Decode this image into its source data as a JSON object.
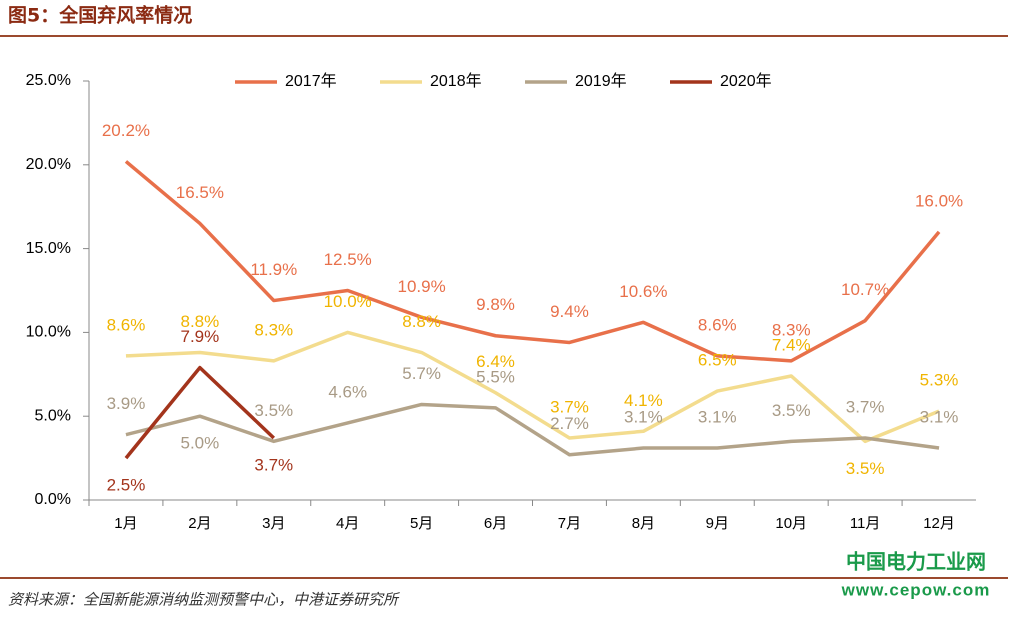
{
  "chart_data": {
    "type": "line",
    "title": "图5：全国弃风率情况",
    "source": "资料来源：全国新能源消纳监测预警中心，中港证券研究所",
    "watermark": [
      "中国电力工业网",
      "www.cepow.com"
    ],
    "categories": [
      "1月",
      "2月",
      "3月",
      "4月",
      "5月",
      "6月",
      "7月",
      "8月",
      "9月",
      "10月",
      "11月",
      "12月"
    ],
    "ylim": [
      0,
      25
    ],
    "yticks": [
      {
        "value": 0,
        "label": "0.0%"
      },
      {
        "value": 5,
        "label": "5.0%"
      },
      {
        "value": 10,
        "label": "10.0%"
      },
      {
        "value": 15,
        "label": "15.0%"
      },
      {
        "value": 20,
        "label": "20.0%"
      },
      {
        "value": 25,
        "label": "25.0%"
      }
    ],
    "legend": "top",
    "series": [
      {
        "name": "2017年",
        "color": "#e8704a",
        "label_color": "#e8704a",
        "values": [
          20.2,
          16.5,
          11.9,
          12.5,
          10.9,
          9.8,
          9.4,
          10.6,
          8.6,
          8.3,
          10.7,
          16.0
        ],
        "value_labels": [
          "20.2%",
          "16.5%",
          "11.9%",
          "12.5%",
          "10.9%",
          "9.8%",
          "9.4%",
          "10.6%",
          "8.6%",
          "8.3%",
          "10.7%",
          "16.0%"
        ]
      },
      {
        "name": "2018年",
        "color": "#f3dc8e",
        "label_color": "#f0b400",
        "values": [
          8.6,
          8.8,
          8.3,
          10.0,
          8.8,
          6.4,
          3.7,
          4.1,
          6.5,
          7.4,
          3.5,
          5.3
        ],
        "value_labels": [
          "8.6%",
          "8.8%",
          "8.3%",
          "10.0%",
          "8.8%",
          "6.4%",
          "3.7%",
          "4.1%",
          "6.5%",
          "7.4%",
          "3.5%",
          "5.3%"
        ]
      },
      {
        "name": "2019年",
        "color": "#b3a389",
        "label_color": "#a89a85",
        "values": [
          3.9,
          5.0,
          3.5,
          4.6,
          5.7,
          5.5,
          2.7,
          3.1,
          3.1,
          3.5,
          3.7,
          3.1
        ],
        "value_labels": [
          "3.9%",
          "5.0%",
          "3.5%",
          "4.6%",
          "5.7%",
          "5.5%",
          "2.7%",
          "3.1%",
          "3.1%",
          "3.5%",
          "3.7%",
          "3.1%"
        ]
      },
      {
        "name": "2020年",
        "color": "#a3341c",
        "label_color": "#a3341c",
        "values": [
          2.5,
          7.9,
          3.7,
          null,
          null,
          null,
          null,
          null,
          null,
          null,
          null,
          null
        ],
        "value_labels": [
          "2.5%",
          "7.9%",
          "3.7%",
          null,
          null,
          null,
          null,
          null,
          null,
          null,
          null,
          null
        ]
      }
    ]
  }
}
